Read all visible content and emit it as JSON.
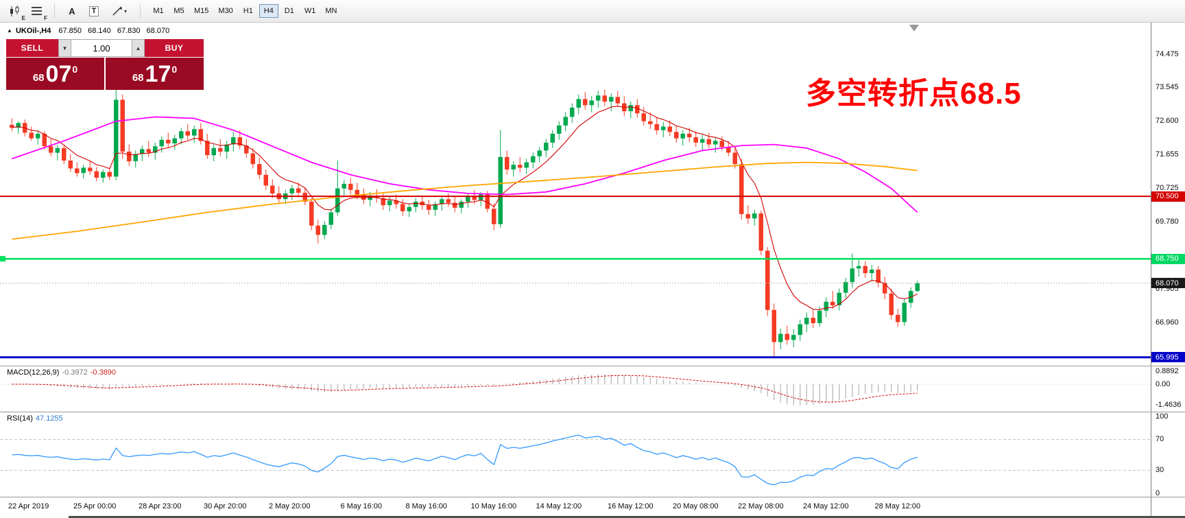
{
  "toolbar": {
    "icons": [
      {
        "name": "candlestick-chart-icon",
        "badge": "E"
      },
      {
        "name": "indicators-list-icon",
        "badge": "F"
      },
      {
        "name": "text-tool-icon",
        "label": "A"
      },
      {
        "name": "textbox-tool-icon",
        "label": "T"
      },
      {
        "name": "draw-line-tool-icon",
        "caret": "▾"
      }
    ],
    "timeframes": [
      {
        "label": "M1",
        "active": false
      },
      {
        "label": "M5",
        "active": false
      },
      {
        "label": "M15",
        "active": false
      },
      {
        "label": "M30",
        "active": false
      },
      {
        "label": "H1",
        "active": false
      },
      {
        "label": "H4",
        "active": true
      },
      {
        "label": "D1",
        "active": false
      },
      {
        "label": "W1",
        "active": false
      },
      {
        "label": "MN",
        "active": false
      }
    ]
  },
  "window": {
    "symbol_header": {
      "marker": "▲",
      "symbol": "UKOil-,H4",
      "open": "67.850",
      "high": "68.140",
      "low": "67.830",
      "close": "68.070"
    }
  },
  "trade_panel": {
    "sell_label": "SELL",
    "buy_label": "BUY",
    "volume": "1.00",
    "vol_down_icon": "▼",
    "vol_up_icon": "▲",
    "sell_price": {
      "base": "68",
      "big": "07",
      "sup": "0"
    },
    "buy_price": {
      "base": "68",
      "big": "17",
      "sup": "0"
    }
  },
  "annotation": {
    "text": "多空转折点68.5",
    "color": "#ff0000"
  },
  "price_axis": {
    "ticks": [
      {
        "label": "74.475",
        "price": 74.475
      },
      {
        "label": "73.545",
        "price": 73.545
      },
      {
        "label": "72.600",
        "price": 72.6
      },
      {
        "label": "71.655",
        "price": 71.655
      },
      {
        "label": "70.725",
        "price": 70.725
      },
      {
        "label": "69.780",
        "price": 69.78
      },
      {
        "label": "67.905",
        "price": 67.905
      },
      {
        "label": "66.960",
        "price": 66.96
      }
    ],
    "badges": [
      {
        "name": "resistance",
        "label": "70.500",
        "price": 70.5,
        "bg": "#d40000",
        "fg": "#ffffff"
      },
      {
        "name": "support",
        "label": "68.750",
        "price": 68.75,
        "bg": "#00d964",
        "fg": "#ffffff"
      },
      {
        "name": "current",
        "label": "68.070",
        "price": 68.07,
        "bg": "#1a1a1a",
        "fg": "#ffffff"
      },
      {
        "name": "low",
        "label": "65.995",
        "price": 65.995,
        "bg": "#0000c8",
        "fg": "#ffffff"
      }
    ]
  },
  "chart_data": {
    "type": "candlestick",
    "symbol": "UKOil-",
    "timeframe": "H4",
    "ylim": [
      65.76,
      75.32
    ],
    "up_color": "#00a84f",
    "down_color": "#f43b24",
    "levels": [
      {
        "name": "current",
        "label": "68.070",
        "price": 68.07,
        "color": "#b0b0b0",
        "width": 1,
        "dotted": true
      },
      {
        "name": "resistance",
        "label": "70.500",
        "price": 70.5,
        "color": "#d40000",
        "width": 2,
        "dotted": false
      },
      {
        "name": "support",
        "label": "68.750",
        "price": 68.75,
        "color": "#00e05e",
        "width": 2.5,
        "dotted": false
      },
      {
        "name": "low",
        "label": "65.995",
        "price": 65.995,
        "color": "#0000c8",
        "width": 3,
        "dotted": false
      }
    ],
    "candles": [
      [
        72.5,
        72.68,
        72.32,
        72.42
      ],
      [
        72.42,
        72.6,
        72.25,
        72.55
      ],
      [
        72.55,
        72.65,
        72.18,
        72.28
      ],
      [
        72.28,
        72.45,
        72.05,
        72.12
      ],
      [
        72.12,
        72.35,
        71.95,
        72.25
      ],
      [
        72.25,
        72.32,
        71.8,
        71.9
      ],
      [
        71.9,
        72.1,
        71.62,
        71.72
      ],
      [
        71.72,
        71.95,
        71.5,
        71.85
      ],
      [
        71.85,
        71.92,
        71.4,
        71.5
      ],
      [
        71.5,
        71.68,
        71.18,
        71.28
      ],
      [
        71.28,
        71.45,
        71.05,
        71.15
      ],
      [
        71.15,
        71.38,
        71.0,
        71.3
      ],
      [
        71.3,
        71.48,
        71.1,
        71.2
      ],
      [
        71.2,
        71.32,
        70.92,
        71.02
      ],
      [
        71.02,
        71.25,
        70.88,
        71.18
      ],
      [
        71.18,
        71.3,
        70.95,
        71.05
      ],
      [
        71.05,
        73.5,
        70.95,
        73.2
      ],
      [
        73.2,
        73.35,
        71.55,
        71.75
      ],
      [
        71.75,
        71.95,
        71.35,
        71.48
      ],
      [
        71.48,
        71.78,
        71.3,
        71.68
      ],
      [
        71.68,
        71.92,
        71.48,
        71.82
      ],
      [
        71.82,
        72.05,
        71.6,
        71.72
      ],
      [
        71.72,
        72.0,
        71.52,
        71.9
      ],
      [
        71.9,
        72.18,
        71.72,
        72.08
      ],
      [
        72.08,
        72.28,
        71.85,
        71.98
      ],
      [
        71.98,
        72.22,
        71.8,
        72.12
      ],
      [
        72.12,
        72.42,
        71.95,
        72.32
      ],
      [
        72.32,
        72.52,
        72.08,
        72.2
      ],
      [
        72.2,
        72.48,
        72.0,
        72.38
      ],
      [
        72.38,
        72.55,
        71.95,
        72.05
      ],
      [
        72.05,
        72.25,
        71.55,
        71.65
      ],
      [
        71.65,
        71.95,
        71.48,
        71.85
      ],
      [
        71.85,
        72.1,
        71.62,
        71.75
      ],
      [
        71.75,
        72.05,
        71.55,
        71.95
      ],
      [
        71.95,
        72.3,
        71.75,
        72.15
      ],
      [
        72.15,
        72.35,
        71.82,
        71.92
      ],
      [
        71.92,
        72.1,
        71.58,
        71.7
      ],
      [
        71.7,
        71.85,
        71.28,
        71.4
      ],
      [
        71.4,
        71.58,
        70.98,
        71.1
      ],
      [
        71.1,
        71.25,
        70.68,
        70.8
      ],
      [
        70.8,
        70.98,
        70.45,
        70.58
      ],
      [
        70.58,
        70.78,
        70.32,
        70.42
      ],
      [
        70.42,
        70.68,
        70.28,
        70.58
      ],
      [
        70.58,
        70.82,
        70.4,
        70.72
      ],
      [
        70.72,
        70.88,
        70.48,
        70.6
      ],
      [
        70.6,
        70.75,
        70.25,
        70.35
      ],
      [
        70.35,
        70.45,
        69.55,
        69.68
      ],
      [
        69.68,
        69.85,
        69.18,
        69.42
      ],
      [
        69.42,
        69.8,
        69.3,
        69.7
      ],
      [
        69.7,
        70.15,
        69.58,
        70.05
      ],
      [
        70.05,
        71.5,
        69.95,
        70.72
      ],
      [
        70.72,
        70.95,
        70.48,
        70.85
      ],
      [
        70.85,
        71.02,
        70.55,
        70.68
      ],
      [
        70.68,
        70.88,
        70.42,
        70.55
      ],
      [
        70.55,
        70.72,
        70.28,
        70.4
      ],
      [
        70.4,
        70.62,
        70.22,
        70.52
      ],
      [
        70.52,
        70.7,
        70.32,
        70.45
      ],
      [
        70.45,
        70.58,
        70.12,
        70.25
      ],
      [
        70.25,
        70.48,
        70.08,
        70.38
      ],
      [
        70.38,
        70.55,
        70.15,
        70.28
      ],
      [
        70.28,
        70.42,
        69.95,
        70.08
      ],
      [
        70.08,
        70.3,
        69.92,
        70.2
      ],
      [
        70.2,
        70.45,
        70.05,
        70.35
      ],
      [
        70.35,
        70.52,
        70.12,
        70.25
      ],
      [
        70.25,
        70.4,
        69.98,
        70.12
      ],
      [
        70.12,
        70.35,
        69.95,
        70.28
      ],
      [
        70.28,
        70.5,
        70.1,
        70.42
      ],
      [
        70.42,
        70.58,
        70.2,
        70.32
      ],
      [
        70.32,
        70.48,
        70.05,
        70.18
      ],
      [
        70.18,
        70.42,
        70.02,
        70.35
      ],
      [
        70.35,
        70.58,
        70.18,
        70.48
      ],
      [
        70.48,
        70.68,
        70.28,
        70.4
      ],
      [
        70.4,
        70.62,
        70.22,
        70.55
      ],
      [
        70.55,
        70.65,
        70.05,
        70.15
      ],
      [
        70.15,
        70.3,
        69.55,
        69.72
      ],
      [
        69.72,
        72.35,
        69.62,
        71.6
      ],
      [
        71.6,
        71.78,
        71.1,
        71.25
      ],
      [
        71.25,
        71.48,
        71.05,
        71.38
      ],
      [
        71.38,
        71.6,
        71.18,
        71.3
      ],
      [
        71.3,
        71.55,
        71.12,
        71.45
      ],
      [
        71.45,
        71.72,
        71.28,
        71.62
      ],
      [
        71.62,
        71.88,
        71.45,
        71.78
      ],
      [
        71.78,
        72.1,
        71.6,
        72.0
      ],
      [
        72.0,
        72.35,
        71.85,
        72.25
      ],
      [
        72.25,
        72.6,
        72.08,
        72.48
      ],
      [
        72.48,
        72.85,
        72.32,
        72.72
      ],
      [
        72.72,
        73.1,
        72.55,
        72.98
      ],
      [
        72.98,
        73.35,
        72.8,
        73.22
      ],
      [
        73.22,
        73.42,
        72.92,
        73.05
      ],
      [
        73.05,
        73.3,
        72.85,
        73.18
      ],
      [
        73.18,
        73.45,
        72.98,
        73.32
      ],
      [
        73.32,
        73.48,
        73.02,
        73.15
      ],
      [
        73.15,
        73.38,
        72.88,
        73.28
      ],
      [
        73.28,
        73.45,
        73.0,
        73.1
      ],
      [
        73.1,
        73.3,
        72.75,
        72.88
      ],
      [
        72.88,
        73.15,
        72.68,
        73.05
      ],
      [
        73.05,
        73.22,
        72.7,
        72.82
      ],
      [
        72.82,
        73.0,
        72.48,
        72.6
      ],
      [
        72.6,
        72.85,
        72.38,
        72.52
      ],
      [
        72.52,
        72.7,
        72.22,
        72.35
      ],
      [
        72.35,
        72.58,
        72.15,
        72.45
      ],
      [
        72.45,
        72.62,
        72.18,
        72.3
      ],
      [
        72.3,
        72.48,
        72.0,
        72.12
      ],
      [
        72.12,
        72.35,
        71.92,
        72.25
      ],
      [
        72.25,
        72.42,
        72.02,
        72.15
      ],
      [
        72.15,
        72.32,
        71.88,
        72.0
      ],
      [
        72.0,
        72.22,
        71.8,
        72.1
      ],
      [
        72.1,
        72.28,
        71.85,
        71.95
      ],
      [
        71.95,
        72.15,
        71.72,
        72.05
      ],
      [
        72.05,
        72.18,
        71.78,
        71.88
      ],
      [
        71.88,
        72.05,
        71.62,
        71.72
      ],
      [
        71.72,
        71.85,
        71.28,
        71.4
      ],
      [
        71.4,
        71.55,
        69.85,
        70.0
      ],
      [
        70.0,
        70.25,
        69.72,
        69.88
      ],
      [
        69.88,
        70.12,
        69.68,
        70.02
      ],
      [
        70.02,
        70.1,
        68.85,
        68.98
      ],
      [
        68.98,
        69.08,
        67.15,
        67.32
      ],
      [
        67.32,
        67.5,
        65.99,
        66.42
      ],
      [
        66.42,
        66.8,
        66.22,
        66.65
      ],
      [
        66.65,
        66.88,
        66.35,
        66.48
      ],
      [
        66.48,
        66.78,
        66.28,
        66.62
      ],
      [
        66.62,
        67.05,
        66.45,
        66.92
      ],
      [
        66.92,
        67.25,
        66.7,
        67.1
      ],
      [
        67.1,
        67.32,
        66.82,
        66.95
      ],
      [
        66.95,
        67.42,
        66.85,
        67.3
      ],
      [
        67.3,
        67.68,
        67.12,
        67.55
      ],
      [
        67.55,
        67.85,
        67.35,
        67.45
      ],
      [
        67.45,
        67.92,
        67.3,
        67.8
      ],
      [
        67.8,
        68.22,
        67.65,
        68.1
      ],
      [
        68.1,
        68.9,
        67.95,
        68.48
      ],
      [
        68.48,
        68.72,
        68.25,
        68.55
      ],
      [
        68.55,
        68.68,
        68.22,
        68.35
      ],
      [
        68.35,
        68.58,
        68.12,
        68.45
      ],
      [
        68.45,
        68.55,
        67.95,
        68.08
      ],
      [
        68.08,
        68.25,
        67.62,
        67.78
      ],
      [
        67.78,
        67.92,
        67.05,
        67.18
      ],
      [
        67.18,
        67.35,
        66.85,
        66.98
      ],
      [
        66.98,
        67.62,
        66.88,
        67.52
      ],
      [
        67.52,
        67.95,
        67.38,
        67.85
      ],
      [
        67.85,
        68.14,
        67.83,
        68.07
      ]
    ],
    "ma_fast": {
      "color": "#d40000",
      "period": 8
    },
    "ma_magenta": {
      "color": "#ff00ff",
      "points": [
        [
          0,
          71.55
        ],
        [
          8,
          72.05
        ],
        [
          16,
          72.6
        ],
        [
          22,
          72.72
        ],
        [
          28,
          72.68
        ],
        [
          34,
          72.35
        ],
        [
          40,
          71.9
        ],
        [
          46,
          71.45
        ],
        [
          52,
          71.1
        ],
        [
          58,
          70.85
        ],
        [
          64,
          70.68
        ],
        [
          70,
          70.58
        ],
        [
          76,
          70.55
        ],
        [
          82,
          70.62
        ],
        [
          88,
          70.85
        ],
        [
          94,
          71.15
        ],
        [
          100,
          71.5
        ],
        [
          106,
          71.78
        ],
        [
          112,
          71.92
        ],
        [
          117,
          71.95
        ],
        [
          122,
          71.85
        ],
        [
          127,
          71.55
        ],
        [
          131,
          71.18
        ],
        [
          135,
          70.72
        ],
        [
          139,
          70.05
        ]
      ]
    },
    "ma_orange": {
      "color": "#ffa500",
      "points": [
        [
          0,
          69.3
        ],
        [
          10,
          69.52
        ],
        [
          20,
          69.78
        ],
        [
          30,
          70.05
        ],
        [
          40,
          70.28
        ],
        [
          50,
          70.48
        ],
        [
          60,
          70.65
        ],
        [
          70,
          70.8
        ],
        [
          80,
          70.92
        ],
        [
          90,
          71.05
        ],
        [
          100,
          71.2
        ],
        [
          108,
          71.32
        ],
        [
          116,
          71.42
        ],
        [
          122,
          71.45
        ],
        [
          128,
          71.42
        ],
        [
          134,
          71.33
        ],
        [
          139,
          71.22
        ]
      ]
    },
    "time_ticks": [
      {
        "label": "22 Apr 2019",
        "i": 0
      },
      {
        "label": "25 Apr 00:00",
        "i": 10
      },
      {
        "label": "28 Apr 23:00",
        "i": 20
      },
      {
        "label": "30 Apr 20:00",
        "i": 30
      },
      {
        "label": "2 May 20:00",
        "i": 40
      },
      {
        "label": "6 May 16:00",
        "i": 51
      },
      {
        "label": "8 May 16:00",
        "i": 61
      },
      {
        "label": "10 May 16:00",
        "i": 71
      },
      {
        "label": "14 May 12:00",
        "i": 81
      },
      {
        "label": "16 May 12:00",
        "i": 92
      },
      {
        "label": "20 May 08:00",
        "i": 102
      },
      {
        "label": "22 May 08:00",
        "i": 112
      },
      {
        "label": "24 May 12:00",
        "i": 122
      },
      {
        "label": "28 May 12:00",
        "i": 133
      }
    ]
  },
  "macd": {
    "title": "MACD(12,26,9)",
    "value_main": "-0.3972",
    "value_signal": "-0.3890",
    "params": {
      "fast": 12,
      "slow": 26,
      "signal": 9
    },
    "colors": {
      "histogram": "#b8b8b8",
      "signal": "#d40000"
    },
    "axis": [
      {
        "label": "0.8892",
        "value": 0.8892
      },
      {
        "label": "0.00",
        "value": 0
      },
      {
        "label": "-1.4636",
        "value": -1.4636
      }
    ]
  },
  "rsi": {
    "title": "RSI(14)",
    "value": "47.1255",
    "period": 14,
    "color": "#3399ff",
    "levels": [
      70,
      30
    ],
    "axis": [
      {
        "label": "100",
        "value": 100
      },
      {
        "label": "70",
        "value": 70
      },
      {
        "label": "30",
        "value": 30
      },
      {
        "label": "0",
        "value": 0
      }
    ]
  }
}
